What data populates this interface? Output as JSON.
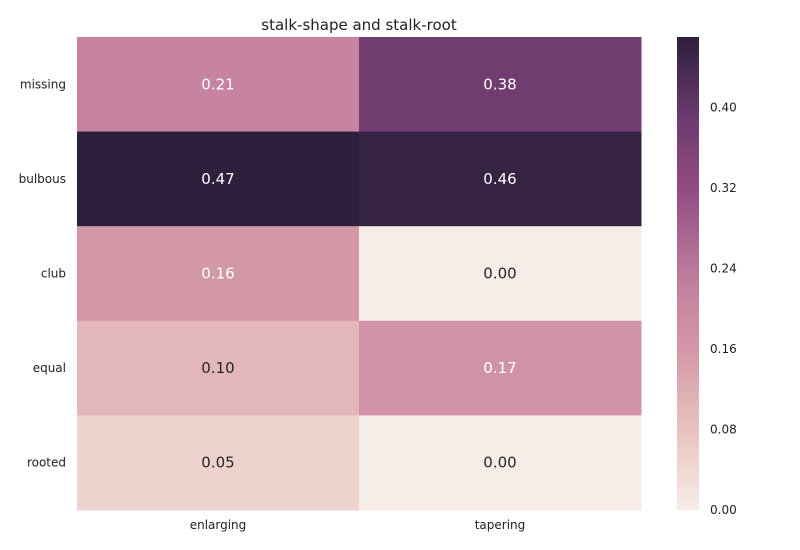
{
  "chart_data": {
    "type": "heatmap",
    "title": "stalk-shape and stalk-root",
    "xlabel": "",
    "ylabel": "",
    "columns": [
      "enlarging",
      "tapering"
    ],
    "rows": [
      "missing",
      "bulbous",
      "club",
      "equal",
      "rooted"
    ],
    "values": [
      [
        0.21,
        0.38
      ],
      [
        0.47,
        0.46
      ],
      [
        0.16,
        0.0
      ],
      [
        0.1,
        0.17
      ],
      [
        0.05,
        0.0
      ]
    ],
    "value_labels": [
      [
        "0.21",
        "0.38"
      ],
      [
        "0.47",
        "0.46"
      ],
      [
        "0.16",
        "0.00"
      ],
      [
        "0.10",
        "0.17"
      ],
      [
        "0.05",
        "0.00"
      ]
    ],
    "colorbar": {
      "range": [
        0,
        0.47
      ],
      "ticks": [
        0.0,
        0.08,
        0.16,
        0.24,
        0.32,
        0.4
      ],
      "tick_labels": [
        "0.00",
        "0.08",
        "0.16",
        "0.24",
        "0.32",
        "0.40"
      ],
      "colors": [
        "#f7ede8",
        "#e9c3bf",
        "#d499a8",
        "#c07a9c",
        "#964d85",
        "#6a3a6e",
        "#2e1f3c"
      ]
    },
    "grid": false,
    "legend": "colorbar-right"
  }
}
